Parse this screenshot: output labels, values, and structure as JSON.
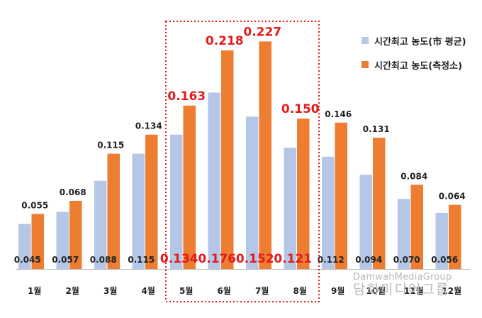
{
  "chart_data": {
    "type": "bar",
    "categories": [
      "1월",
      "2월",
      "3월",
      "4월",
      "5월",
      "6월",
      "7월",
      "8월",
      "9월",
      "10월",
      "11월",
      "12월"
    ],
    "series": [
      {
        "name": "시간최고 농도(市 평균)",
        "color": "#b4c7e7",
        "values": [
          0.045,
          0.057,
          0.088,
          0.115,
          0.134,
          0.176,
          0.152,
          0.121,
          0.112,
          0.094,
          0.07,
          0.056
        ]
      },
      {
        "name": "시간최고 농도(측정소)",
        "color": "#ed7d31",
        "values": [
          0.055,
          0.068,
          0.115,
          0.134,
          0.163,
          0.218,
          0.227,
          0.15,
          0.146,
          0.131,
          0.084,
          0.064
        ]
      }
    ],
    "highlight": {
      "categories": [
        "5월",
        "6월",
        "7월",
        "8월"
      ],
      "label_color": "#e31b1b",
      "box_style": "red dotted rectangle"
    },
    "ylim": [
      0,
      0.24
    ],
    "grid": false,
    "legend_position": "top-right"
  },
  "watermark": {
    "line1": "DamwahMediaGroup",
    "line2": "담화미디어그룹"
  },
  "colors": {
    "axis": "#bfbfbf",
    "label": "#222222",
    "highlight": "#e31b1b"
  }
}
